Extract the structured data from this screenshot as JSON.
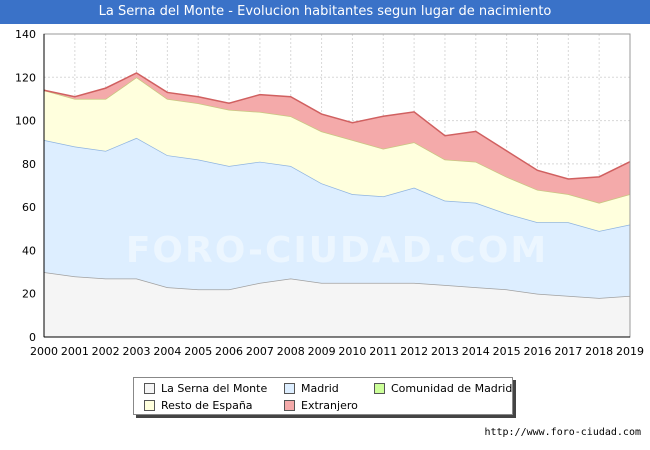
{
  "title": "La Serna del Monte - Evolucion habitantes segun lugar de nacimiento",
  "footer_url": "http://www.foro-ciudad.com",
  "watermark": "FORO-CIUDAD.COM",
  "chart_data": {
    "type": "area",
    "stacked": true,
    "x": [
      2000,
      2001,
      2002,
      2003,
      2004,
      2005,
      2006,
      2007,
      2008,
      2009,
      2010,
      2011,
      2012,
      2013,
      2014,
      2015,
      2016,
      2017,
      2018,
      2019
    ],
    "ylim": [
      0,
      140
    ],
    "yticks": [
      0,
      20,
      40,
      60,
      80,
      100,
      120,
      140
    ],
    "grid": true,
    "legend_position": "bottom",
    "series": [
      {
        "name": "La Serna del Monte",
        "color": "#f5f5f5",
        "line": "#a0a0a0",
        "values": [
          30,
          28,
          27,
          27,
          23,
          22,
          22,
          25,
          27,
          25,
          25,
          25,
          25,
          24,
          23,
          22,
          20,
          19,
          18,
          19
        ]
      },
      {
        "name": "Madrid",
        "color": "#ddeeff",
        "line": "#8fb4e0",
        "values": [
          61,
          60,
          59,
          65,
          61,
          60,
          57,
          56,
          52,
          46,
          41,
          40,
          44,
          39,
          39,
          35,
          33,
          34,
          31,
          33
        ]
      },
      {
        "name": "Comunidad de Madrid",
        "color": "#ccff99",
        "line": "#88bb55",
        "values": [
          0,
          0,
          0,
          0,
          0,
          0,
          0,
          0,
          0,
          0,
          0,
          0,
          0,
          0,
          0,
          0,
          0,
          0,
          0,
          0
        ]
      },
      {
        "name": "Resto de España",
        "color": "#ffffdd",
        "line": "#c8c880",
        "values": [
          23,
          22,
          24,
          28,
          26,
          26,
          26,
          23,
          23,
          24,
          25,
          22,
          21,
          19,
          19,
          17,
          15,
          13,
          13,
          14
        ]
      },
      {
        "name": "Extranjero",
        "color": "#f4aaaa",
        "line": "#d06060",
        "values": [
          0,
          1,
          5,
          2,
          3,
          3,
          3,
          8,
          9,
          8,
          8,
          15,
          14,
          11,
          14,
          12,
          9,
          7,
          12,
          15
        ]
      }
    ]
  }
}
